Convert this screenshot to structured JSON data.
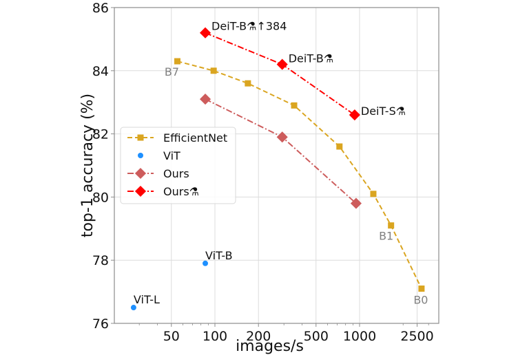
{
  "chart_data": {
    "type": "line",
    "title": "",
    "xlabel": "images/s",
    "ylabel": "top-1 accuracy (%)",
    "xscale": "log",
    "xlim": [
      18,
      3400
    ],
    "ylim": [
      76,
      86
    ],
    "xticks": [
      50,
      100,
      200,
      500,
      1000,
      2500
    ],
    "xtick_labels": [
      "50",
      "100",
      "200",
      "500",
      "1000",
      "2500"
    ],
    "yticks": [
      76,
      78,
      80,
      82,
      84,
      86
    ],
    "ytick_labels": [
      "76",
      "78",
      "80",
      "82",
      "84",
      "86"
    ],
    "grid": true,
    "legend_position": "center-left",
    "series": [
      {
        "name": "EfficientNet",
        "color": "#DAA520",
        "linestyle": "dashed",
        "marker": "square",
        "x": [
          55,
          98,
          169,
          353,
          726,
          1245,
          1650,
          2680
        ],
        "y": [
          84.3,
          84.0,
          83.6,
          82.9,
          81.6,
          80.1,
          79.1,
          77.1
        ]
      },
      {
        "name": "ViT",
        "color": "#1E90FF",
        "linestyle": "none",
        "marker": "circle",
        "x": [
          27.4,
          85.8
        ],
        "y": [
          76.5,
          77.9
        ]
      },
      {
        "name": "Ours",
        "color": "#CD5C5C",
        "linestyle": "dashdot",
        "marker": "diamond",
        "x": [
          85.8,
          292,
          946
        ],
        "y": [
          83.1,
          81.9,
          79.8
        ]
      },
      {
        "name": "Ours⚗",
        "color": "#FF0000",
        "linestyle": "dashdot",
        "marker": "diamond",
        "x": [
          85.8,
          292,
          925
        ],
        "y": [
          85.2,
          84.2,
          82.6
        ]
      }
    ],
    "annotations": [
      {
        "text": "DeiT-B⚗↑384",
        "x": 85.8,
        "y": 85.2,
        "style": "dark"
      },
      {
        "text": "DeiT-B⚗",
        "x": 292,
        "y": 84.2,
        "style": "dark"
      },
      {
        "text": "DeiT-S⚗",
        "x": 925,
        "y": 82.6,
        "style": "dark"
      },
      {
        "text": "ViT-B",
        "x": 85.8,
        "y": 77.9,
        "style": "dark"
      },
      {
        "text": "ViT-L",
        "x": 27.4,
        "y": 76.5,
        "style": "dark"
      },
      {
        "text": "B7",
        "x": 55,
        "y": 84.3,
        "style": "gray"
      },
      {
        "text": "B1",
        "x": 1650,
        "y": 79.1,
        "style": "gray"
      },
      {
        "text": "B0",
        "x": 2680,
        "y": 77.1,
        "style": "gray"
      }
    ]
  }
}
